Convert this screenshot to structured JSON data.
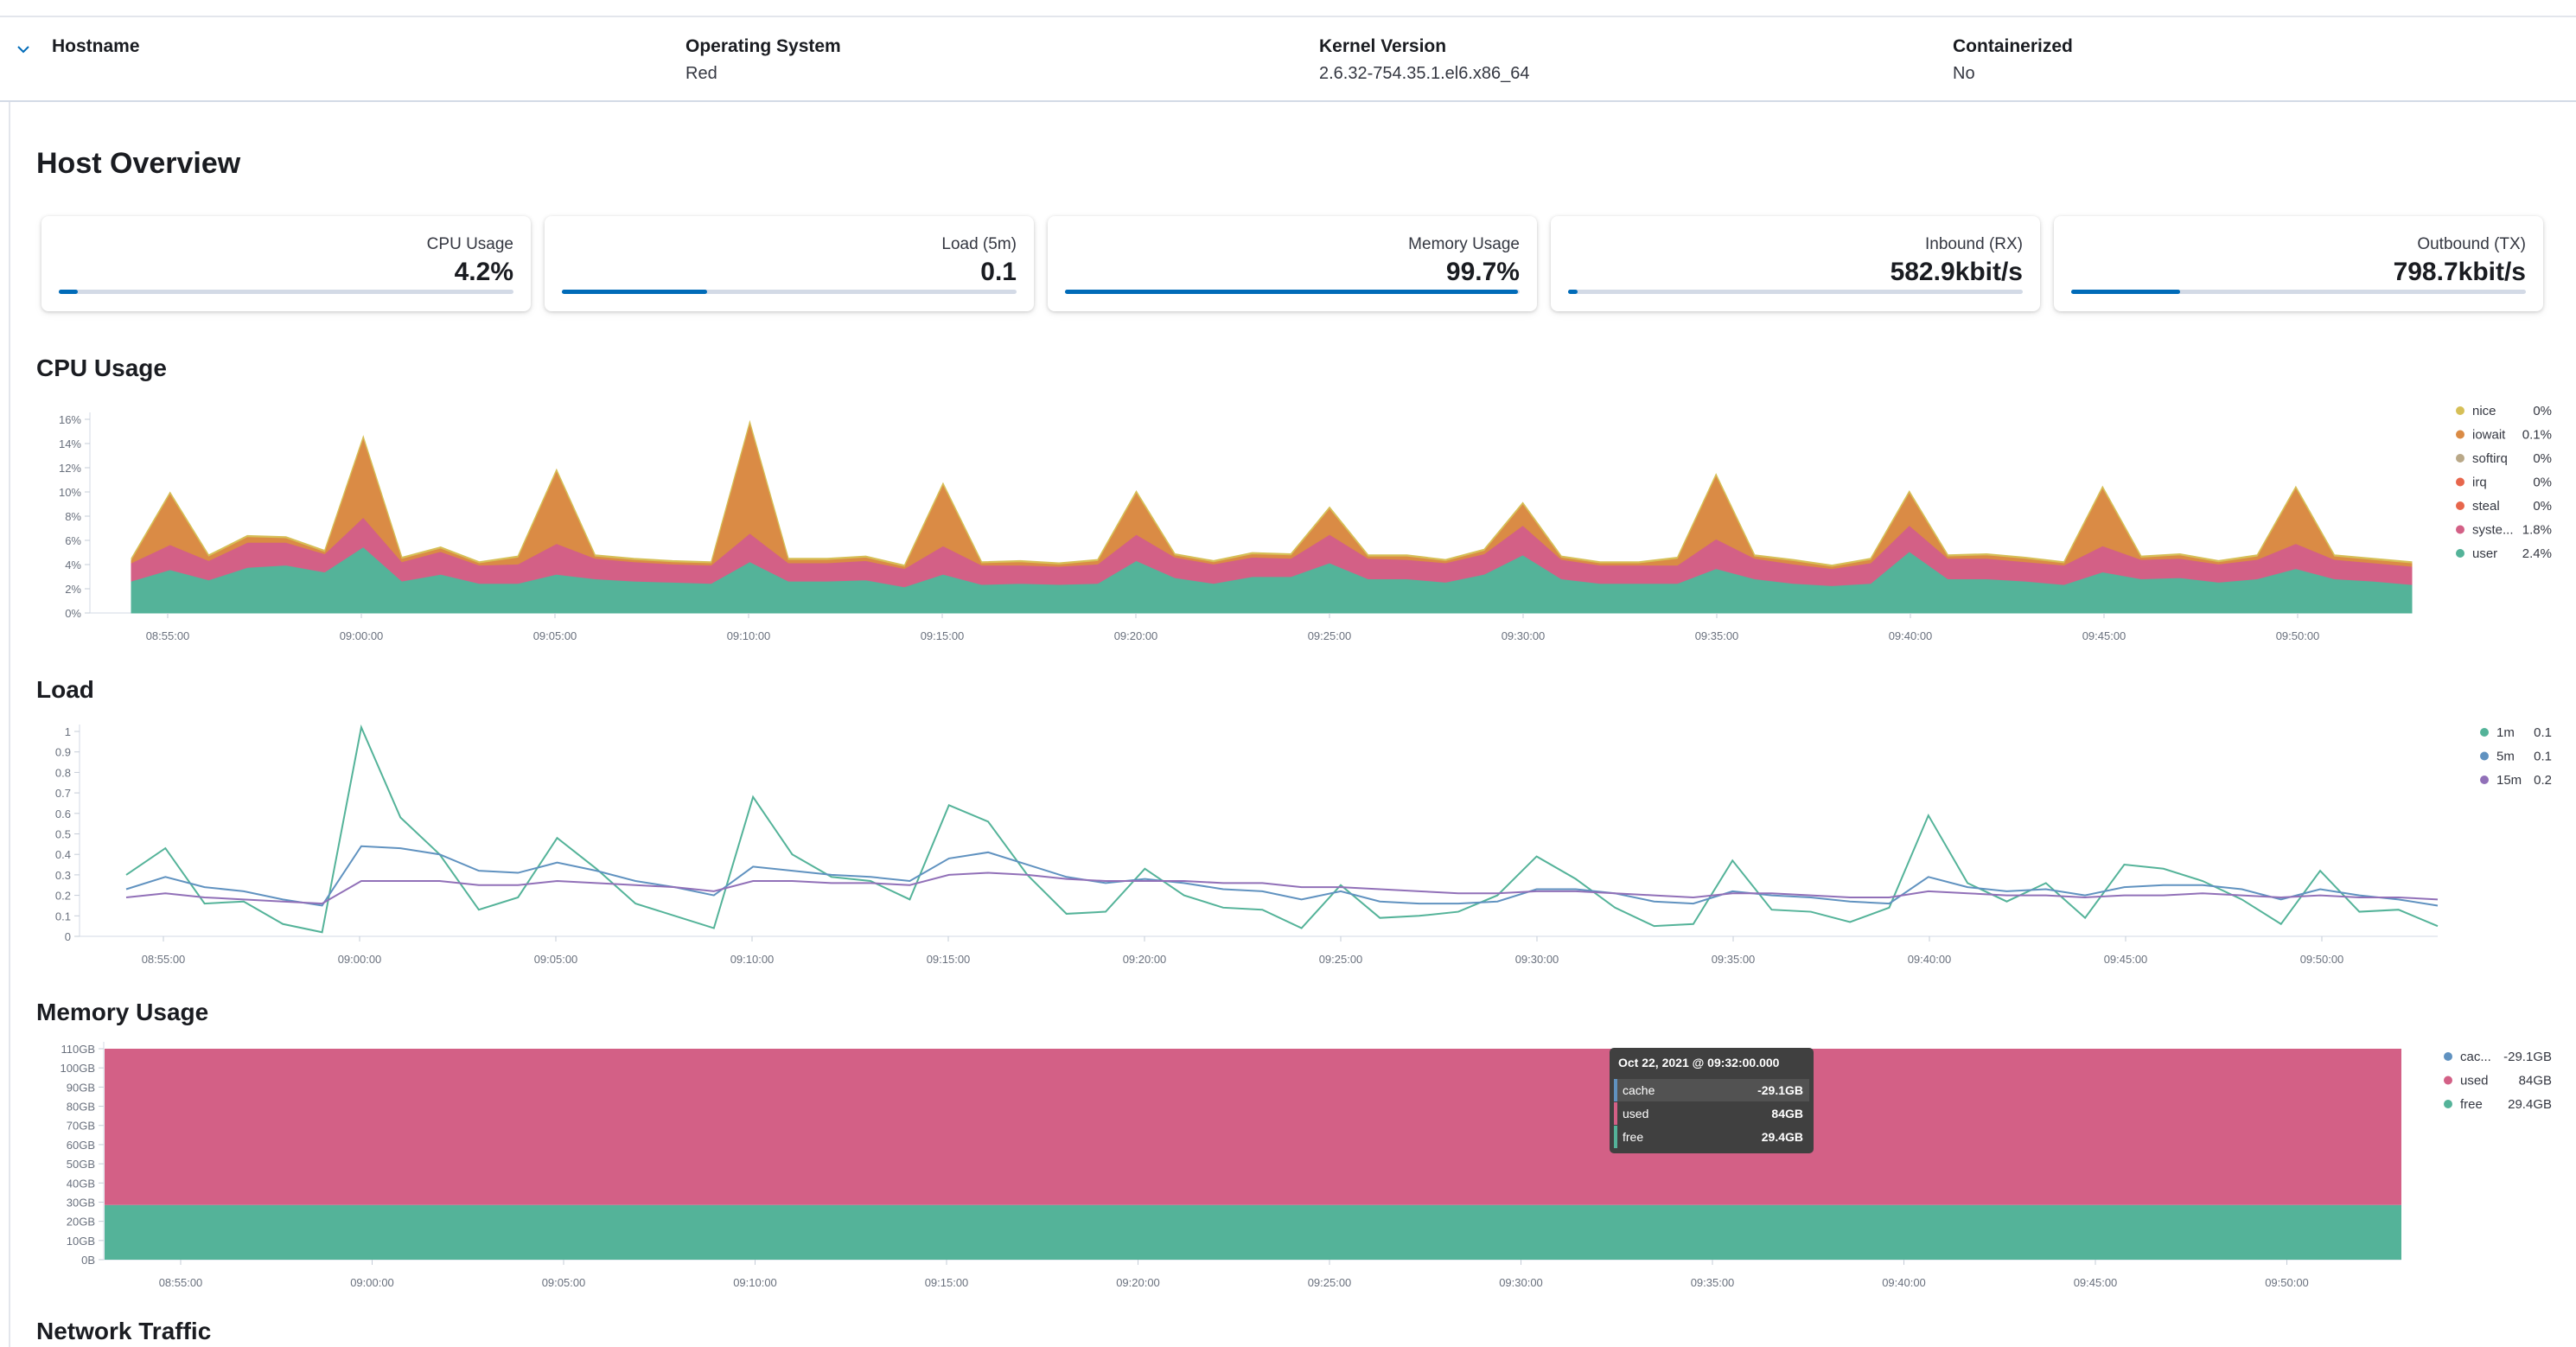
{
  "header": {
    "hostname_label": "Hostname",
    "os_label": "Operating System",
    "os_value": "Red",
    "kernel_label": "Kernel Version",
    "kernel_value": "2.6.32-754.35.1.el6.x86_64",
    "container_label": "Containerized",
    "container_value": "No"
  },
  "overview": {
    "title": "Host Overview",
    "cards": [
      {
        "label": "CPU Usage",
        "value": "4.2%",
        "fill_fraction": 0.042
      },
      {
        "label": "Load (5m)",
        "value": "0.1",
        "fill_fraction": 0.32
      },
      {
        "label": "Memory Usage",
        "value": "99.7%",
        "fill_fraction": 0.997
      },
      {
        "label": "Inbound (RX)",
        "value": "582.9kbit/s",
        "fill_fraction": 0.02
      },
      {
        "label": "Outbound (TX)",
        "value": "798.7kbit/s",
        "fill_fraction": 0.24
      }
    ]
  },
  "sections": {
    "cpu": "CPU Usage",
    "load": "Load",
    "memory": "Memory Usage",
    "network": "Network Traffic"
  },
  "colors": {
    "nice": "#d6bf57",
    "iowait": "#da8b45",
    "softirq": "#b9a888",
    "irq": "#e7664c",
    "steal": "#e7664c",
    "system": "#d36086",
    "user": "#54b399",
    "load1m": "#54b399",
    "load5m": "#6092c0",
    "load15m": "#9170b8",
    "cache": "#6092c0",
    "used": "#d36086",
    "free": "#54b399",
    "bar": "#006bb8"
  },
  "chart_data": [
    {
      "type": "area",
      "title": "CPU Usage",
      "x_ticks": [
        "08:55:00",
        "09:00:00",
        "09:05:00",
        "09:10:00",
        "09:15:00",
        "09:20:00",
        "09:25:00",
        "09:30:00",
        "09:35:00",
        "09:40:00",
        "09:45:00",
        "09:50:00"
      ],
      "y_ticks": [
        "0%",
        "2%",
        "4%",
        "6%",
        "8%",
        "10%",
        "12%",
        "14%",
        "16%"
      ],
      "ylim": [
        0,
        17
      ],
      "legend": [
        {
          "name": "nice",
          "value": "0%"
        },
        {
          "name": "iowait",
          "value": "0.1%"
        },
        {
          "name": "softirq",
          "value": "0%"
        },
        {
          "name": "irq",
          "value": "0%"
        },
        {
          "name": "steal",
          "value": "0%"
        },
        {
          "name": "syste...",
          "value": "1.8%"
        },
        {
          "name": "user",
          "value": "2.4%"
        }
      ],
      "series": [
        {
          "name": "user",
          "values": [
            2.8,
            3.8,
            2.9,
            4.0,
            4.2,
            3.6,
            5.8,
            2.8,
            3.4,
            2.6,
            2.6,
            3.4,
            3.0,
            2.8,
            2.7,
            2.6,
            4.5,
            2.8,
            2.8,
            2.9,
            2.3,
            3.4,
            2.5,
            2.6,
            2.5,
            2.6,
            4.6,
            3.1,
            2.6,
            3.2,
            3.2,
            4.4,
            3.0,
            3.0,
            2.7,
            3.4,
            5.1,
            3.0,
            2.6,
            2.6,
            2.6,
            3.9,
            3.0,
            2.6,
            2.4,
            2.6,
            5.4,
            3.0,
            3.0,
            2.8,
            2.5,
            3.6,
            3.0,
            3.1,
            2.7,
            3.0,
            3.9,
            3.0,
            2.8,
            2.5
          ]
        },
        {
          "name": "system",
          "values": [
            1.6,
            2.2,
            1.7,
            2.2,
            2.0,
            1.6,
            2.6,
            1.7,
            2.0,
            1.6,
            1.7,
            2.7,
            1.8,
            1.7,
            1.6,
            1.6,
            2.5,
            1.6,
            1.6,
            1.7,
            1.6,
            2.5,
            1.7,
            1.6,
            1.6,
            1.7,
            2.3,
            1.8,
            1.7,
            1.7,
            1.6,
            2.5,
            1.8,
            1.7,
            1.7,
            1.8,
            2.6,
            1.7,
            1.6,
            1.6,
            1.6,
            2.6,
            1.8,
            1.7,
            1.5,
            1.8,
            2.3,
            1.8,
            1.8,
            1.7,
            1.7,
            2.3,
            1.7,
            1.7,
            1.6,
            1.7,
            2.2,
            1.7,
            1.6,
            1.6
          ]
        },
        {
          "name": "iowait",
          "values": [
            0.3,
            4.5,
            0.4,
            0.5,
            0.4,
            0.2,
            7.0,
            0.3,
            0.3,
            0.2,
            0.6,
            6.4,
            0.2,
            0.2,
            0.2,
            0.2,
            9.7,
            0.3,
            0.3,
            0.3,
            0.2,
            5.4,
            0.2,
            0.3,
            0.2,
            0.3,
            3.7,
            0.2,
            0.2,
            0.3,
            0.3,
            2.3,
            0.2,
            0.3,
            0.2,
            0.3,
            1.9,
            0.2,
            0.2,
            0.2,
            0.6,
            5.6,
            0.2,
            0.3,
            0.2,
            0.3,
            2.9,
            0.2,
            0.3,
            0.3,
            0.2,
            5.1,
            0.2,
            0.3,
            0.2,
            0.3,
            4.9,
            0.3,
            0.3,
            0.3
          ]
        },
        {
          "name": "nice",
          "values": [
            0.1,
            0.1,
            0.1,
            0.1,
            0.1,
            0.1,
            0.1,
            0.1,
            0.1,
            0.1,
            0.1,
            0.1,
            0.1,
            0.1,
            0.1,
            0.1,
            0.1,
            0.1,
            0.1,
            0.1,
            0.1,
            0.1,
            0.1,
            0.1,
            0.1,
            0.1,
            0.1,
            0.1,
            0.1,
            0.1,
            0.1,
            0.1,
            0.1,
            0.1,
            0.1,
            0.1,
            0.1,
            0.1,
            0.1,
            0.1,
            0.1,
            0.1,
            0.1,
            0.1,
            0.1,
            0.1,
            0.1,
            0.1,
            0.1,
            0.1,
            0.1,
            0.1,
            0.1,
            0.1,
            0.1,
            0.1,
            0.1,
            0.1,
            0.1,
            0.1
          ]
        }
      ]
    },
    {
      "type": "line",
      "title": "Load",
      "x_ticks": [
        "08:55:00",
        "09:00:00",
        "09:05:00",
        "09:10:00",
        "09:15:00",
        "09:20:00",
        "09:25:00",
        "09:30:00",
        "09:35:00",
        "09:40:00",
        "09:45:00",
        "09:50:00"
      ],
      "y_ticks": [
        "0",
        "0.1",
        "0.2",
        "0.3",
        "0.4",
        "0.5",
        "0.6",
        "0.7",
        "0.8",
        "0.9",
        "1"
      ],
      "ylim": [
        0,
        1
      ],
      "legend": [
        {
          "name": "1m",
          "value": "0.1"
        },
        {
          "name": "5m",
          "value": "0.1"
        },
        {
          "name": "15m",
          "value": "0.2"
        }
      ],
      "series": [
        {
          "name": "1m",
          "values": [
            0.3,
            0.43,
            0.16,
            0.17,
            0.06,
            0.02,
            1.02,
            0.58,
            0.4,
            0.13,
            0.19,
            0.48,
            0.33,
            0.16,
            0.1,
            0.04,
            0.68,
            0.4,
            0.29,
            0.27,
            0.18,
            0.64,
            0.56,
            0.3,
            0.11,
            0.12,
            0.33,
            0.2,
            0.14,
            0.13,
            0.04,
            0.25,
            0.09,
            0.1,
            0.12,
            0.2,
            0.39,
            0.28,
            0.14,
            0.05,
            0.06,
            0.37,
            0.13,
            0.12,
            0.07,
            0.14,
            0.59,
            0.26,
            0.17,
            0.26,
            0.09,
            0.35,
            0.33,
            0.27,
            0.18,
            0.06,
            0.32,
            0.12,
            0.13,
            0.05
          ]
        },
        {
          "name": "5m",
          "values": [
            0.23,
            0.29,
            0.24,
            0.22,
            0.18,
            0.15,
            0.44,
            0.43,
            0.4,
            0.32,
            0.31,
            0.36,
            0.32,
            0.27,
            0.24,
            0.2,
            0.34,
            0.32,
            0.3,
            0.29,
            0.27,
            0.38,
            0.41,
            0.35,
            0.29,
            0.26,
            0.28,
            0.26,
            0.23,
            0.22,
            0.18,
            0.22,
            0.17,
            0.16,
            0.16,
            0.17,
            0.23,
            0.23,
            0.21,
            0.17,
            0.16,
            0.22,
            0.2,
            0.19,
            0.17,
            0.16,
            0.29,
            0.24,
            0.22,
            0.23,
            0.2,
            0.24,
            0.25,
            0.25,
            0.23,
            0.18,
            0.23,
            0.2,
            0.18,
            0.15
          ]
        },
        {
          "name": "15m",
          "values": [
            0.19,
            0.21,
            0.19,
            0.18,
            0.17,
            0.16,
            0.27,
            0.27,
            0.27,
            0.25,
            0.25,
            0.27,
            0.26,
            0.25,
            0.24,
            0.22,
            0.27,
            0.27,
            0.26,
            0.26,
            0.25,
            0.3,
            0.31,
            0.3,
            0.28,
            0.27,
            0.27,
            0.27,
            0.26,
            0.26,
            0.24,
            0.24,
            0.23,
            0.22,
            0.21,
            0.21,
            0.22,
            0.22,
            0.21,
            0.2,
            0.19,
            0.21,
            0.21,
            0.2,
            0.19,
            0.19,
            0.22,
            0.21,
            0.2,
            0.2,
            0.19,
            0.2,
            0.2,
            0.21,
            0.2,
            0.19,
            0.2,
            0.19,
            0.19,
            0.18
          ]
        }
      ]
    },
    {
      "type": "area",
      "title": "Memory Usage",
      "x_ticks": [
        "08:55:00",
        "09:00:00",
        "09:05:00",
        "09:10:00",
        "09:15:00",
        "09:20:00",
        "09:25:00",
        "09:30:00",
        "09:35:00",
        "09:40:00",
        "09:45:00",
        "09:50:00"
      ],
      "y_ticks": [
        "0B",
        "10GB",
        "20GB",
        "30GB",
        "40GB",
        "50GB",
        "60GB",
        "70GB",
        "80GB",
        "90GB",
        "100GB",
        "110GB"
      ],
      "ylim": [
        0,
        113.4
      ],
      "legend": [
        {
          "name": "cac...",
          "value": "-29.1GB"
        },
        {
          "name": "used",
          "value": "84GB"
        },
        {
          "name": "free",
          "value": "29.4GB"
        }
      ],
      "series": [
        {
          "name": "free",
          "value_gb": 29.4
        },
        {
          "name": "used",
          "value_gb": 84
        },
        {
          "name": "cache",
          "value_gb": -29.1
        }
      ],
      "tooltip": {
        "title": "Oct 22, 2021 @ 09:32:00.000",
        "rows": [
          {
            "name": "cache",
            "value": "-29.1GB"
          },
          {
            "name": "used",
            "value": "84GB"
          },
          {
            "name": "free",
            "value": "29.4GB"
          }
        ]
      }
    }
  ]
}
